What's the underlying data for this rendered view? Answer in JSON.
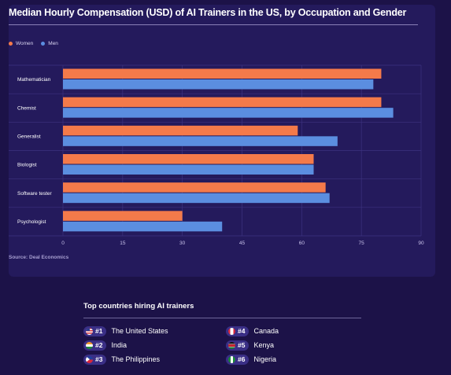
{
  "chart_data": {
    "type": "bar",
    "orientation": "horizontal",
    "title": "Median Hourly Compensation (USD) of AI Trainers in the US, by Occupation and Gender",
    "categories": [
      "Mathematician",
      "Chemist",
      "Generalist",
      "Biologist",
      "Software tester",
      "Psychologist"
    ],
    "series": [
      {
        "name": "Women",
        "color": "#f47a4a",
        "values": [
          80,
          80,
          59,
          63,
          66,
          30
        ]
      },
      {
        "name": "Men",
        "color": "#5b8ee0",
        "values": [
          78,
          83,
          69,
          63,
          67,
          40
        ]
      }
    ],
    "xlim": [
      0,
      90
    ],
    "xticks": [
      "0",
      "15",
      "30",
      "45",
      "60",
      "75",
      "90"
    ],
    "grid": true,
    "legend_position": "top-left",
    "source": "Source: Deal Economics"
  },
  "countries": {
    "title": "Top countries hiring AI trainers",
    "items": [
      {
        "rank": "#1",
        "name": "The United States",
        "flag": "us-flag-icon",
        "cls": "flag-us"
      },
      {
        "rank": "#2",
        "name": "India",
        "flag": "india-flag-icon",
        "cls": "flag-in"
      },
      {
        "rank": "#3",
        "name": "The Philippines",
        "flag": "philippines-flag-icon",
        "cls": "flag-ph"
      },
      {
        "rank": "#4",
        "name": "Canada",
        "flag": "canada-flag-icon",
        "cls": "flag-ca"
      },
      {
        "rank": "#5",
        "name": "Kenya",
        "flag": "kenya-flag-icon",
        "cls": "flag-ke"
      },
      {
        "rank": "#6",
        "name": "Nigeria",
        "flag": "nigeria-flag-icon",
        "cls": "flag-ng"
      }
    ]
  },
  "colors": {
    "background": "#1c1248",
    "card": "#241a5c",
    "women": "#f47a4a",
    "men": "#5b8ee0"
  }
}
